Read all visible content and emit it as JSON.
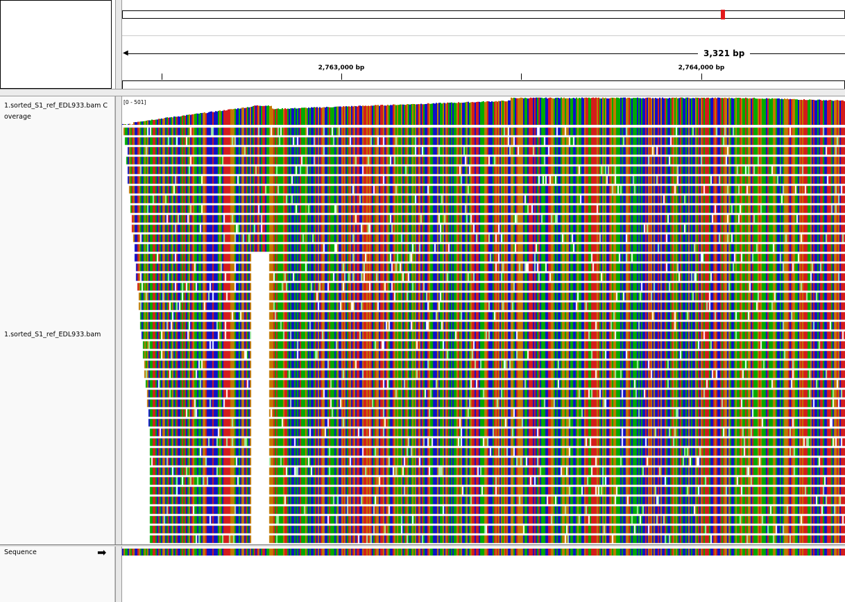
{
  "header": {
    "span_label": "3,321 bp",
    "ticks": [
      {
        "label": "",
        "bp": 2762500
      },
      {
        "label": "2,763,000 bp",
        "bp": 2763000
      },
      {
        "label": "",
        "bp": 2763500
      },
      {
        "label": "2,764,000 bp",
        "bp": 2764000
      }
    ]
  },
  "tracks": {
    "coverage_name": "1.sorted_S1_ref_EDL933.bam Coverage",
    "coverage_range": "[0 - 501]",
    "alignment_name": "1.sorted_S1_ref_EDL933.bam",
    "sequence_name": "Sequence"
  },
  "colors": {
    "A": "#00aa00",
    "C": "#1010c8",
    "G": "#c07800",
    "T": "#d41c1c",
    "mismatch_light": "#9fe89f",
    "ideogram_marker": "#e31a1c"
  }
}
